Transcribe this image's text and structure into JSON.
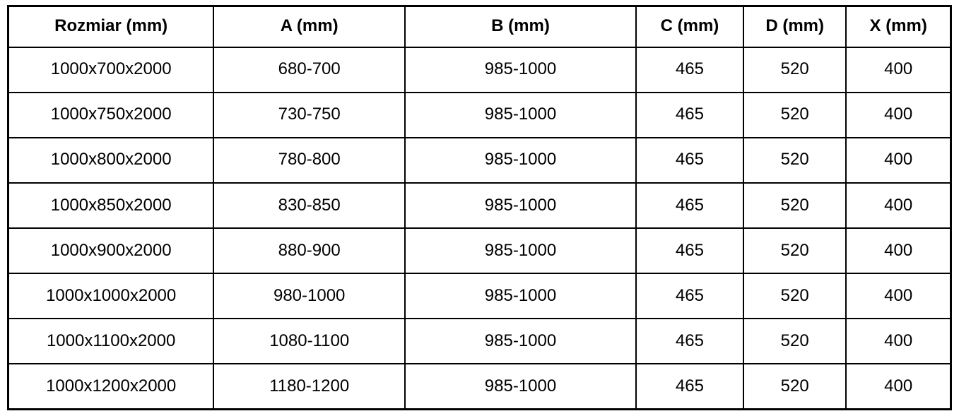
{
  "table": {
    "headers": [
      "Rozmiar (mm)",
      "A (mm)",
      "B (mm)",
      "C (mm)",
      "D (mm)",
      "X (mm)"
    ],
    "rows": [
      [
        "1000x700x2000",
        "680-700",
        "985-1000",
        "465",
        "520",
        "400"
      ],
      [
        "1000x750x2000",
        "730-750",
        "985-1000",
        "465",
        "520",
        "400"
      ],
      [
        "1000x800x2000",
        "780-800",
        "985-1000",
        "465",
        "520",
        "400"
      ],
      [
        "1000x850x2000",
        "830-850",
        "985-1000",
        "465",
        "520",
        "400"
      ],
      [
        "1000x900x2000",
        "880-900",
        "985-1000",
        "465",
        "520",
        "400"
      ],
      [
        "1000x1000x2000",
        "980-1000",
        "985-1000",
        "465",
        "520",
        "400"
      ],
      [
        "1000x1100x2000",
        "1080-1100",
        "985-1000",
        "465",
        "520",
        "400"
      ],
      [
        "1000x1200x2000",
        "1180-1200",
        "985-1000",
        "465",
        "520",
        "400"
      ]
    ]
  },
  "chart_data": {
    "type": "table",
    "title": "",
    "columns": [
      "Rozmiar (mm)",
      "A (mm)",
      "B (mm)",
      "C (mm)",
      "D (mm)",
      "X (mm)"
    ],
    "rows": [
      [
        "1000x700x2000",
        "680-700",
        "985-1000",
        465,
        520,
        400
      ],
      [
        "1000x750x2000",
        "730-750",
        "985-1000",
        465,
        520,
        400
      ],
      [
        "1000x800x2000",
        "780-800",
        "985-1000",
        465,
        520,
        400
      ],
      [
        "1000x850x2000",
        "830-850",
        "985-1000",
        465,
        520,
        400
      ],
      [
        "1000x900x2000",
        "880-900",
        "985-1000",
        465,
        520,
        400
      ],
      [
        "1000x1000x2000",
        "980-1000",
        "985-1000",
        465,
        520,
        400
      ],
      [
        "1000x1100x2000",
        "1080-1100",
        "985-1000",
        465,
        520,
        400
      ],
      [
        "1000x1200x2000",
        "1180-1200",
        "985-1000",
        465,
        520,
        400
      ]
    ]
  },
  "colors": {
    "border": "#000000",
    "text": "#000000",
    "background": "#ffffff"
  }
}
